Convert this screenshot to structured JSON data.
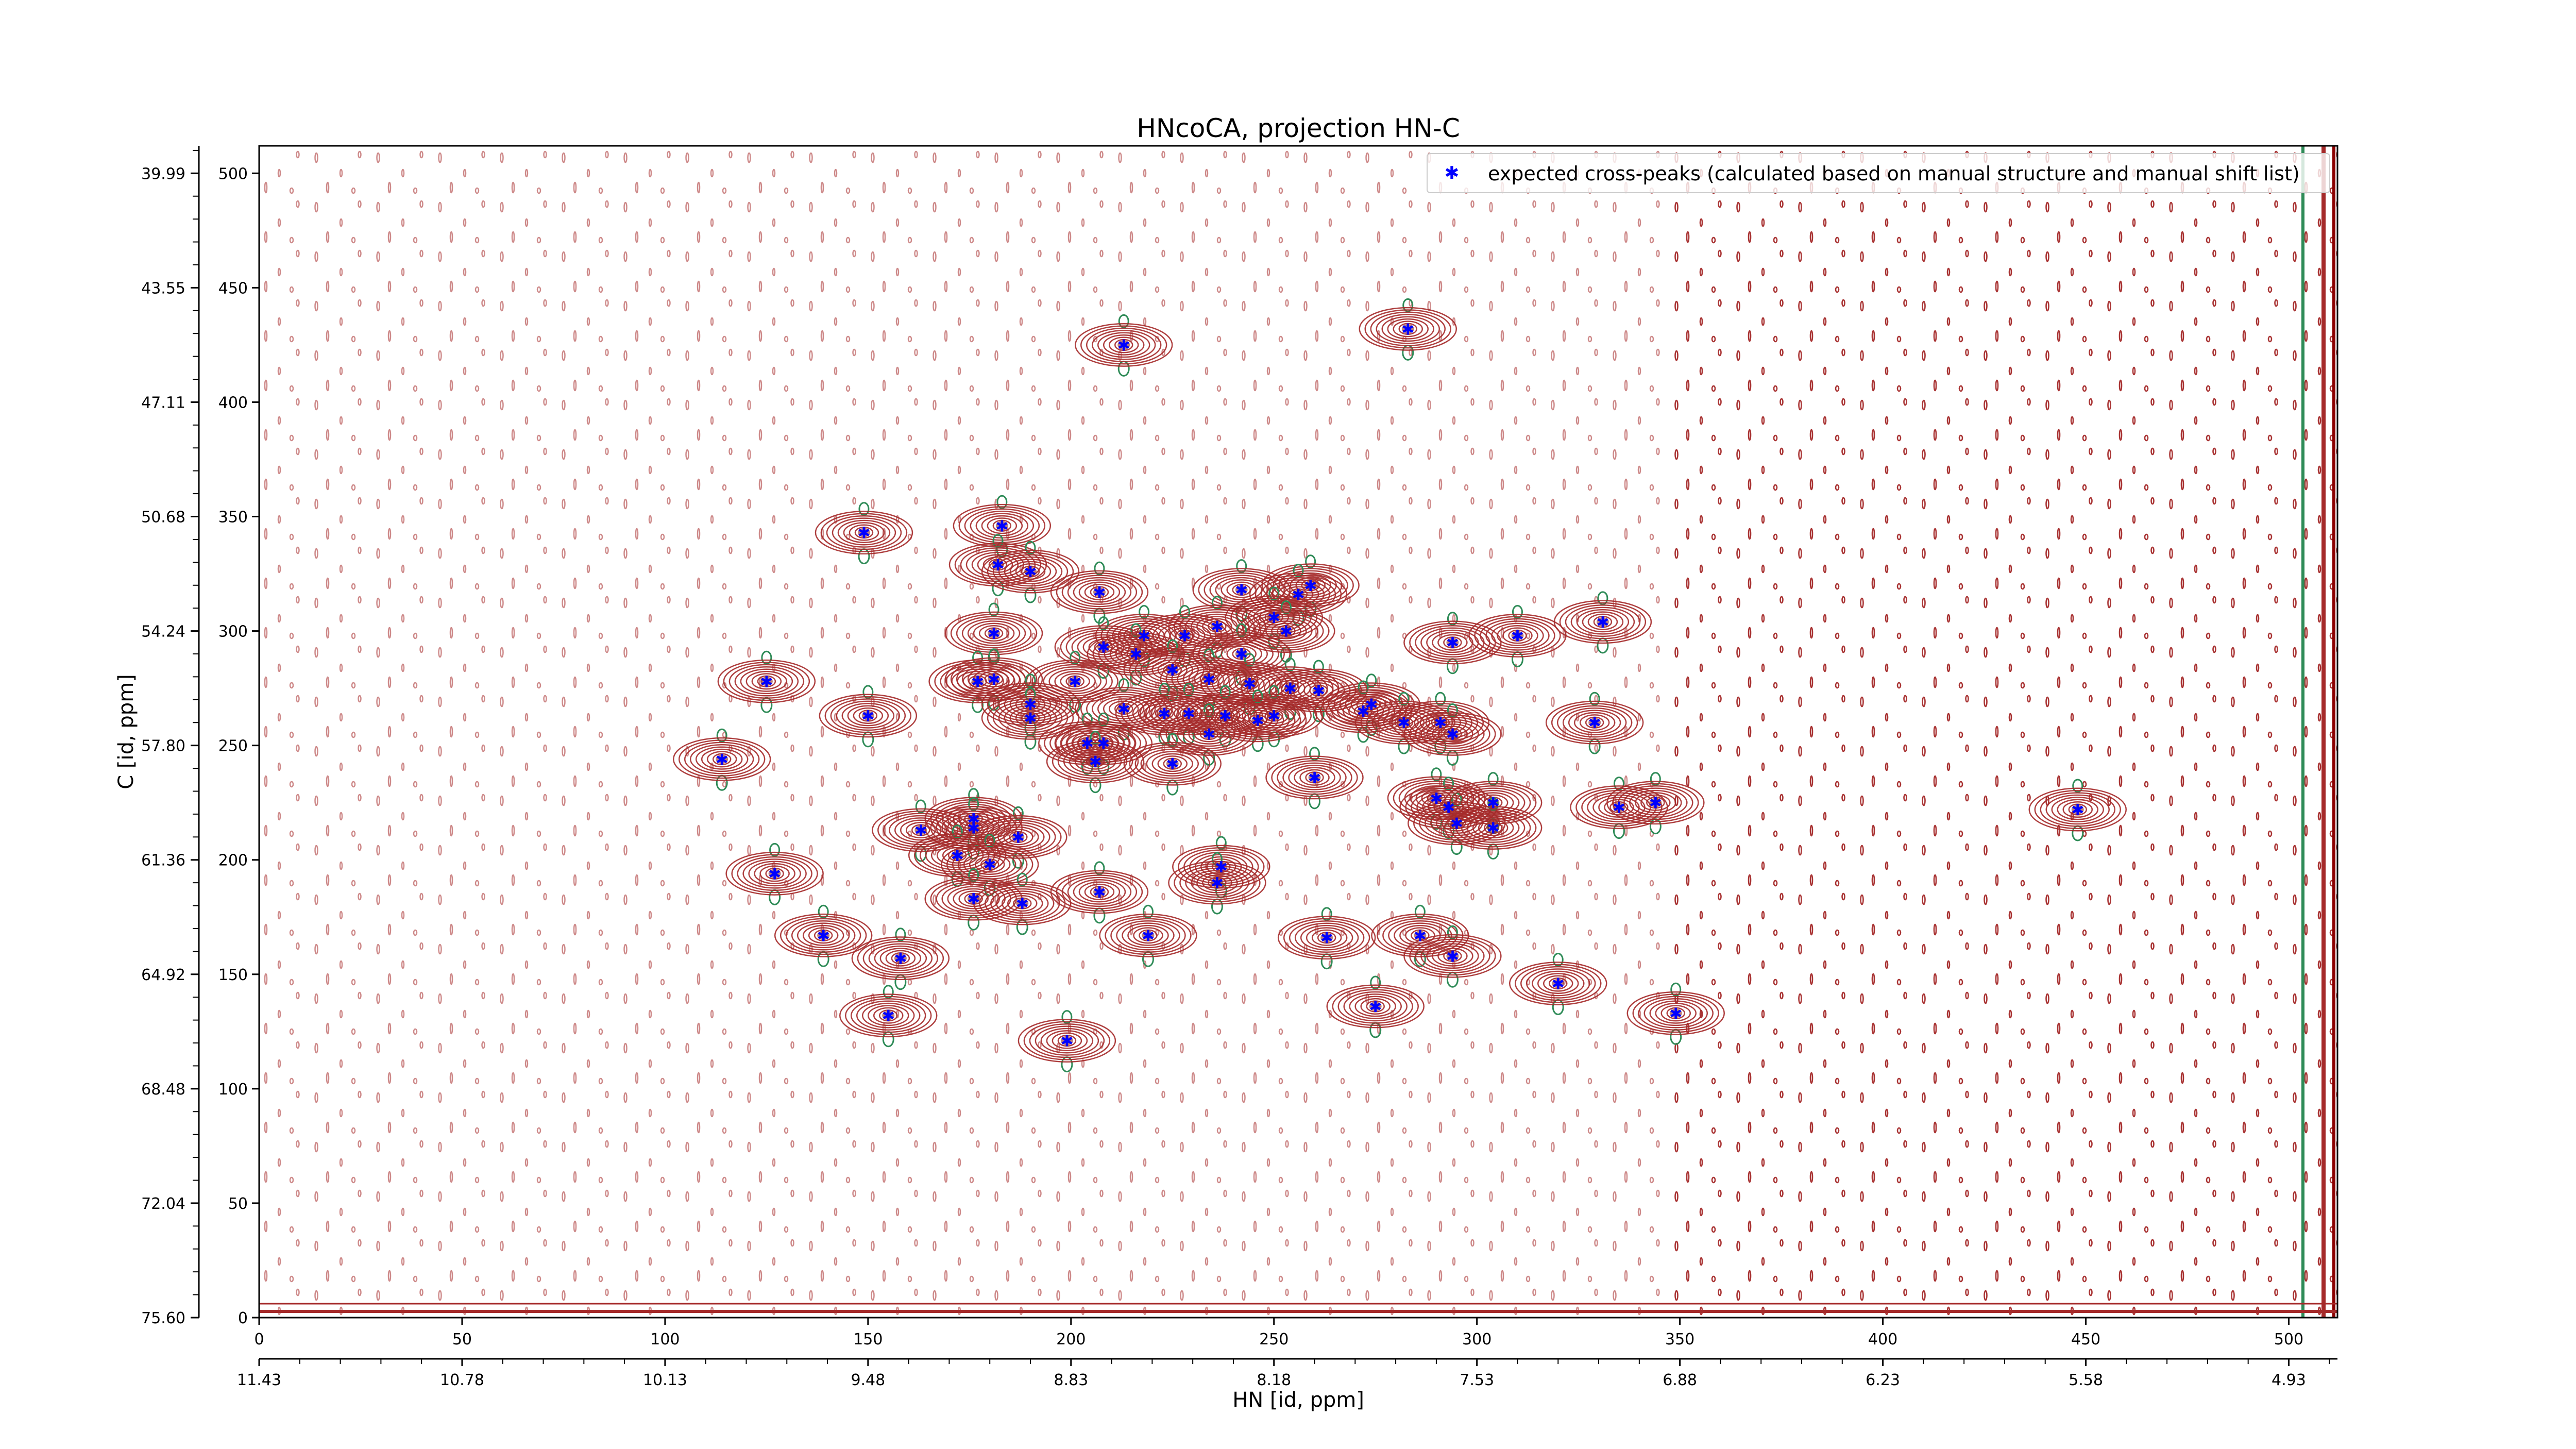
{
  "chart_data": {
    "type": "scatter",
    "title": "HNcoCA, projection HN-C",
    "xlabel": "HN [id, ppm]",
    "ylabel": "C [id, ppm]",
    "xlim": [
      0,
      512
    ],
    "ylim": [
      0,
      512
    ],
    "x_ticks_index": [
      "0",
      "50",
      "100",
      "150",
      "200",
      "250",
      "300",
      "350",
      "400",
      "450",
      "500"
    ],
    "x_ticks_ppm": [
      "11.43",
      "10.78",
      "10.13",
      "9.48",
      "8.83",
      "8.18",
      "7.53",
      "6.88",
      "6.23",
      "5.58",
      "4.93"
    ],
    "y_ticks_index": [
      "0",
      "50",
      "100",
      "150",
      "200",
      "250",
      "300",
      "350",
      "400",
      "450",
      "500"
    ],
    "y_ticks_ppm": [
      "75.60",
      "72.04",
      "68.48",
      "64.92",
      "61.36",
      "57.80",
      "54.24",
      "50.68",
      "47.11",
      "43.55",
      "39.99"
    ],
    "legend": {
      "position": "top-right",
      "entries": [
        "expected cross-peaks (calculated based on manual structure and manual shift list)"
      ]
    },
    "colors": {
      "peaks": "#0000ff",
      "contour_positive": "#a52a2a",
      "contour_negative": "#2e8b57"
    },
    "series": [
      {
        "name": "expected cross-peaks (calculated based on manual structure and manual shift list)",
        "points": [
          [
            213,
            425
          ],
          [
            283,
            432
          ],
          [
            149,
            343
          ],
          [
            183,
            346
          ],
          [
            182,
            329
          ],
          [
            190,
            326
          ],
          [
            207,
            317
          ],
          [
            242,
            318
          ],
          [
            259,
            320
          ],
          [
            256,
            316
          ],
          [
            250,
            306
          ],
          [
            253,
            300
          ],
          [
            236,
            302
          ],
          [
            228,
            298
          ],
          [
            218,
            298
          ],
          [
            216,
            290
          ],
          [
            208,
            293
          ],
          [
            242,
            290
          ],
          [
            234,
            279
          ],
          [
            244,
            277
          ],
          [
            254,
            275
          ],
          [
            261,
            274
          ],
          [
            274,
            268
          ],
          [
            272,
            265
          ],
          [
            225,
            283
          ],
          [
            181,
            299
          ],
          [
            294,
            295
          ],
          [
            310,
            298
          ],
          [
            331,
            304
          ],
          [
            125,
            278
          ],
          [
            177,
            278
          ],
          [
            181,
            279
          ],
          [
            201,
            278
          ],
          [
            190,
            268
          ],
          [
            190,
            262
          ],
          [
            150,
            263
          ],
          [
            213,
            266
          ],
          [
            223,
            264
          ],
          [
            229,
            264
          ],
          [
            238,
            263
          ],
          [
            250,
            263
          ],
          [
            246,
            261
          ],
          [
            234,
            255
          ],
          [
            204,
            251
          ],
          [
            208,
            251
          ],
          [
            206,
            243
          ],
          [
            225,
            242
          ],
          [
            114,
            244
          ],
          [
            282,
            260
          ],
          [
            291,
            260
          ],
          [
            294,
            255
          ],
          [
            329,
            260
          ],
          [
            260,
            236
          ],
          [
            290,
            227
          ],
          [
            293,
            223
          ],
          [
            295,
            216
          ],
          [
            304,
            225
          ],
          [
            304,
            214
          ],
          [
            335,
            223
          ],
          [
            344,
            225
          ],
          [
            448,
            222
          ],
          [
            163,
            213
          ],
          [
            176,
            218
          ],
          [
            176,
            214
          ],
          [
            187,
            210
          ],
          [
            172,
            202
          ],
          [
            180,
            198
          ],
          [
            127,
            194
          ],
          [
            237,
            197
          ],
          [
            236,
            190
          ],
          [
            207,
            186
          ],
          [
            176,
            183
          ],
          [
            188,
            181
          ],
          [
            139,
            167
          ],
          [
            219,
            167
          ],
          [
            263,
            166
          ],
          [
            286,
            167
          ],
          [
            294,
            158
          ],
          [
            158,
            157
          ],
          [
            320,
            146
          ],
          [
            155,
            132
          ],
          [
            275,
            136
          ],
          [
            349,
            133
          ],
          [
            199,
            121
          ]
        ]
      }
    ]
  }
}
